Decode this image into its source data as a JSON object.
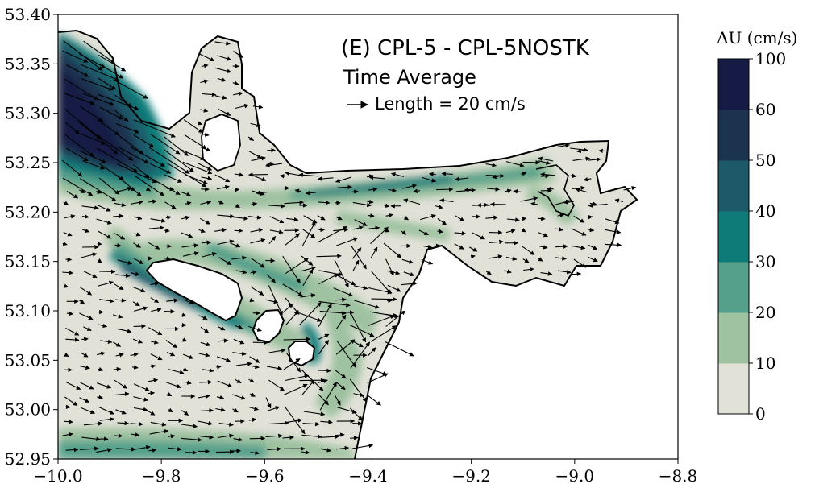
{
  "chart_data": {
    "type": "heatmap",
    "title": "(E) CPL-5 - CPL-5NOSTK",
    "subtitle": "Time Average",
    "reference_vector_label": "Length = 20 cm/s",
    "xlabel": "",
    "ylabel": "",
    "xlim": [
      -10.0,
      -8.8
    ],
    "ylim": [
      52.95,
      53.4
    ],
    "x_ticks": [
      "−10.0",
      "−9.8",
      "−9.6",
      "−9.4",
      "−9.2",
      "−9.0",
      "−8.8"
    ],
    "x_tick_values": [
      -10.0,
      -9.8,
      -9.6,
      -9.4,
      -9.2,
      -9.0,
      -8.8
    ],
    "y_ticks": [
      "52.95",
      "53.00",
      "53.05",
      "53.10",
      "53.15",
      "53.20",
      "53.25",
      "53.30",
      "53.35",
      "53.40"
    ],
    "y_tick_values": [
      52.95,
      53.0,
      53.05,
      53.1,
      53.15,
      53.2,
      53.25,
      53.3,
      53.35,
      53.4
    ],
    "grid": false,
    "colorbar": {
      "label": "ΔU (cm/s)",
      "levels": [
        "0",
        "10",
        "20",
        "30",
        "40",
        "50",
        "60",
        "100"
      ],
      "level_values": [
        0,
        10,
        20,
        30,
        40,
        50,
        60,
        100
      ],
      "colors": [
        "#e1e1d7",
        "#9fc2a1",
        "#55a08b",
        "#0f7b78",
        "#1d5a69",
        "#1b334f",
        "#161b45"
      ]
    },
    "coastline_color": "#000000",
    "land_color": "#ffffff"
  }
}
